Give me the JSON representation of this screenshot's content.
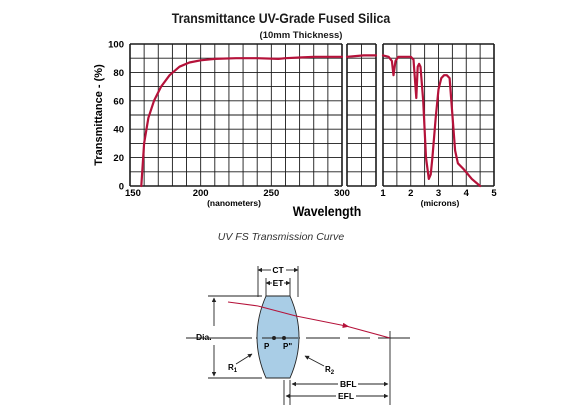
{
  "chart_data": {
    "type": "line",
    "title": "Transmittance UV-Grade Fused Silica",
    "subtitle": "(10mm Thickness)",
    "ylabel": "Transmittance - (%)",
    "xlabel": "Wavelength",
    "ylim": [
      0,
      100
    ],
    "y_ticks": [
      "0",
      "20",
      "40",
      "60",
      "80",
      "100"
    ],
    "grid": true,
    "line_color": "#b5123a",
    "panels": [
      {
        "unit_label": "(nanometers)",
        "xlim": [
          150,
          300
        ],
        "x_ticks": [
          "150",
          "200",
          "250",
          "300"
        ],
        "series": {
          "x": [
            158,
            160,
            163,
            167,
            172,
            178,
            185,
            192,
            200,
            210,
            225,
            240,
            255,
            260,
            270,
            280,
            290,
            300
          ],
          "y": [
            0,
            30,
            48,
            60,
            70,
            78,
            84,
            87,
            88.5,
            89.5,
            90,
            90,
            89.5,
            90,
            90.5,
            91,
            91,
            91
          ]
        }
      },
      {
        "unit_label": "",
        "xlim": [
          300,
          1000
        ],
        "x_ticks": [],
        "series": {
          "x": [
            300,
            500,
            700,
            1000
          ],
          "y": [
            91,
            91.5,
            92,
            92
          ]
        }
      },
      {
        "unit_label": "(microns)",
        "xlim": [
          1,
          5
        ],
        "x_ticks": [
          "1",
          "2",
          "3",
          "4",
          "5"
        ],
        "series": {
          "x": [
            1.0,
            1.2,
            1.32,
            1.38,
            1.45,
            1.55,
            2.0,
            2.1,
            2.2,
            2.25,
            2.3,
            2.35,
            2.45,
            2.55,
            2.65,
            2.72,
            2.78,
            2.9,
            3.0,
            3.1,
            3.2,
            3.3,
            3.4,
            3.5,
            3.6,
            3.7,
            3.9,
            4.2,
            4.5
          ],
          "y": [
            92,
            91,
            88,
            78,
            88,
            91,
            91,
            89,
            62,
            84,
            86,
            84,
            60,
            20,
            5,
            8,
            20,
            48,
            68,
            76,
            78,
            78,
            76,
            50,
            25,
            16,
            12,
            5,
            0
          ]
        }
      }
    ]
  },
  "caption": "UV FS Transmission Curve",
  "diagram": {
    "fill": "#a9cde6",
    "labels": {
      "ct": "CT",
      "et": "ET",
      "dia": "Dia.",
      "p": "P",
      "p_prime": "P\"",
      "r1": "R1",
      "r2": "R2",
      "bfl": "BFL",
      "efl": "EFL"
    }
  }
}
